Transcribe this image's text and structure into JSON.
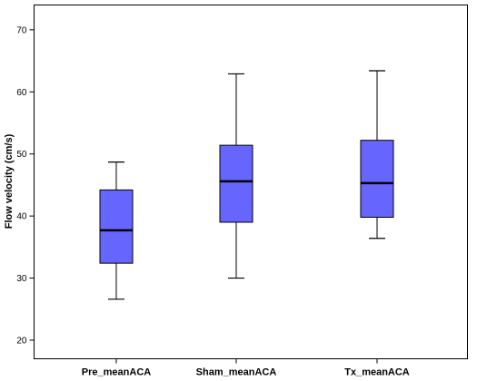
{
  "chart_data": {
    "type": "boxplot",
    "title": "",
    "xlabel": "",
    "ylabel": "Flow velocity (cm/s)",
    "ylim": [
      17,
      74
    ],
    "yticks": [
      20,
      30,
      40,
      50,
      60,
      70
    ],
    "grid": false,
    "legend": "none",
    "box_color": "#6666ff",
    "categories": [
      "Pre_meanACA",
      "Sham_meanACA",
      "Tx_meanACA"
    ],
    "series": [
      {
        "values": [
          {
            "min": 26.6,
            "q1": 32.4,
            "median": 37.7,
            "q3": 44.2,
            "max": 48.7
          },
          {
            "min": 30.0,
            "q1": 39.0,
            "median": 45.6,
            "q3": 51.4,
            "max": 62.9
          },
          {
            "min": 36.4,
            "q1": 39.8,
            "median": 45.3,
            "q3": 52.2,
            "max": 63.4
          }
        ]
      }
    ]
  }
}
